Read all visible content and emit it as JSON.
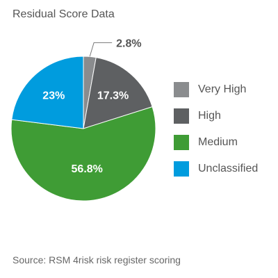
{
  "chart_data": {
    "type": "pie",
    "title": "Residual Score Data",
    "source": "Source: RSM 4risk risk register scoring",
    "legend_position": "right",
    "slices": [
      {
        "label": "Very High",
        "value": 2.8,
        "display": "2.8%",
        "color": "#8a8c8e"
      },
      {
        "label": "High",
        "value": 17.3,
        "display": "17.3%",
        "color": "#5e6062"
      },
      {
        "label": "Medium",
        "value": 56.8,
        "display": "56.8%",
        "color": "#3f9c35"
      },
      {
        "label": "Unclassified",
        "value": 23,
        "display": "23%",
        "color": "#009cde"
      }
    ]
  }
}
